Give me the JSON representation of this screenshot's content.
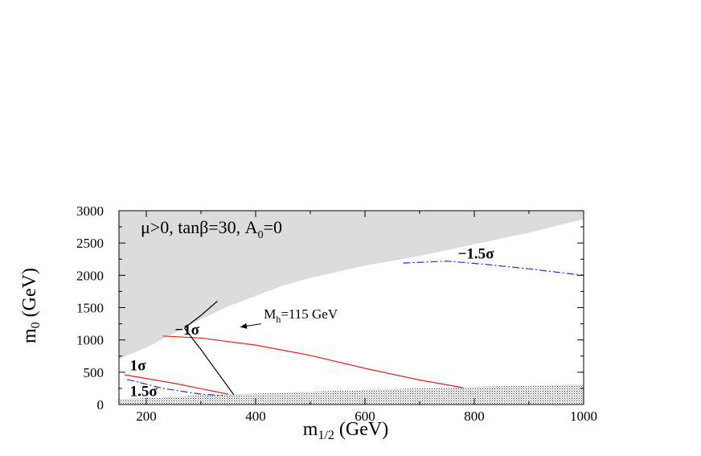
{
  "chart_data": {
    "type": "line",
    "title": "μ>0, tanβ=30, A",
    "title_sub": "0",
    "title_tail": "=0",
    "xlabel": "m",
    "xlabel_sub": "1/2",
    "xlabel_tail": " (GeV)",
    "ylabel": "m",
    "ylabel_sub": "0",
    "ylabel_tail": " (GeV)",
    "xlim": [
      150,
      1000
    ],
    "ylim": [
      0,
      3000
    ],
    "x_ticks": [
      200,
      400,
      600,
      800,
      1000
    ],
    "y_ticks": [
      0,
      500,
      1000,
      1500,
      2000,
      2500,
      3000
    ],
    "grid": false,
    "regions": [
      {
        "kind": "excluded-upper",
        "fill": "#dcdcdc",
        "boundary": [
          [
            150,
            3000
          ],
          [
            150,
            700
          ],
          [
            170,
            780
          ],
          [
            200,
            880
          ],
          [
            250,
            1100
          ],
          [
            300,
            1320
          ],
          [
            350,
            1520
          ],
          [
            400,
            1680
          ],
          [
            450,
            1840
          ],
          [
            500,
            1960
          ],
          [
            600,
            2150
          ],
          [
            700,
            2300
          ],
          [
            800,
            2480
          ],
          [
            900,
            2660
          ],
          [
            1000,
            2870
          ],
          [
            1000,
            3000
          ]
        ]
      },
      {
        "kind": "excluded-lower-dotted",
        "fill": "dots",
        "boundary": [
          [
            150,
            0
          ],
          [
            150,
            80
          ],
          [
            300,
            140
          ],
          [
            500,
            200
          ],
          [
            700,
            250
          ],
          [
            850,
            285
          ],
          [
            1000,
            310
          ],
          [
            1000,
            0
          ]
        ]
      }
    ],
    "series": [
      {
        "name": "",
        "color": "#e8201c",
        "dash": "solid",
        "points": [
          [
            230,
            1060
          ],
          [
            300,
            1030
          ],
          [
            400,
            920
          ],
          [
            500,
            760
          ],
          [
            600,
            560
          ],
          [
            700,
            380
          ],
          [
            780,
            260
          ]
        ]
      },
      {
        "name": "",
        "color": "#e8201c",
        "dash": "solid",
        "points": [
          [
            160,
            460
          ],
          [
            250,
            330
          ],
          [
            350,
            160
          ]
        ]
      },
      {
        "name": "",
        "color": "#2030d8",
        "dash": "dashdot",
        "points": [
          [
            165,
            390
          ],
          [
            230,
            250
          ],
          [
            300,
            160
          ],
          [
            340,
            140
          ]
        ]
      },
      {
        "name": "",
        "color": "#2030d8",
        "dash": "dashdot",
        "points": [
          [
            670,
            2190
          ],
          [
            750,
            2220
          ],
          [
            820,
            2170
          ],
          [
            900,
            2100
          ],
          [
            1000,
            2000
          ]
        ]
      },
      {
        "name": "",
        "color": "#000000",
        "dash": "solid",
        "points": [
          [
            360,
            150
          ],
          [
            330,
            500
          ],
          [
            300,
            850
          ],
          [
            270,
            1180
          ],
          [
            272,
            1200
          ],
          [
            300,
            1380
          ],
          [
            330,
            1600
          ]
        ]
      }
    ],
    "annotations": [
      {
        "text": "−1.5σ",
        "x": 770,
        "y": 2260,
        "style": "bold"
      },
      {
        "text": "−1σ",
        "x": 252,
        "y": 1080,
        "style": "bold"
      },
      {
        "text": "1σ",
        "x": 170,
        "y": 530,
        "style": "bold"
      },
      {
        "text": "1.5σ",
        "x": 170,
        "y": 130,
        "style": "bold"
      },
      {
        "text": "M",
        "sub": "h",
        "tail": "=115 GeV",
        "x": 415,
        "y": 1330,
        "style": "normal"
      }
    ],
    "arrow": {
      "from": [
        410,
        1250
      ],
      "to": [
        372,
        1200
      ]
    }
  }
}
